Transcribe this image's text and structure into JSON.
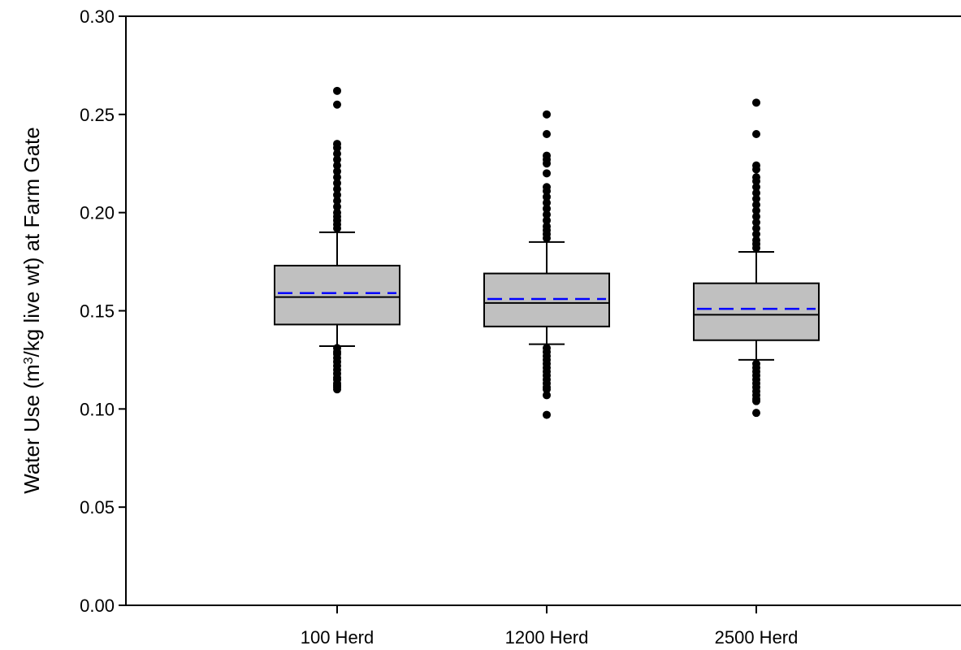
{
  "chart_data": {
    "type": "box",
    "ylabel": {
      "prefix": "Water Use (m",
      "superscript": "3",
      "suffix": "/kg live wt) at Farm Gate"
    },
    "xlabel": "",
    "ylim": [
      0,
      0.3
    ],
    "yticks": [
      "0.00",
      "0.05",
      "0.10",
      "0.15",
      "0.20",
      "0.25",
      "0.30"
    ],
    "grid": false,
    "colors": {
      "box_fill": "#c0c0c0",
      "mean_line": "#0000ff",
      "outline": "#000000"
    },
    "categories": [
      "100 Herd",
      "1200 Herd",
      "2500 Herd"
    ],
    "boxes": [
      {
        "category": "100 Herd",
        "whisker_low": 0.132,
        "q1": 0.143,
        "median": 0.157,
        "mean": 0.159,
        "q3": 0.173,
        "whisker_high": 0.19,
        "outliers_low": [
          0.131,
          0.129,
          0.128,
          0.126,
          0.124,
          0.122,
          0.12,
          0.118,
          0.116,
          0.115,
          0.113,
          0.112,
          0.111,
          0.11
        ],
        "outliers_high": [
          0.192,
          0.194,
          0.196,
          0.198,
          0.2,
          0.203,
          0.206,
          0.209,
          0.212,
          0.215,
          0.218,
          0.221,
          0.224,
          0.227,
          0.23,
          0.233,
          0.235,
          0.255,
          0.262
        ]
      },
      {
        "category": "1200 Herd",
        "whisker_low": 0.133,
        "q1": 0.142,
        "median": 0.154,
        "mean": 0.156,
        "q3": 0.169,
        "whisker_high": 0.185,
        "outliers_low": [
          0.131,
          0.129,
          0.127,
          0.125,
          0.123,
          0.121,
          0.119,
          0.117,
          0.115,
          0.113,
          0.111,
          0.11,
          0.107,
          0.097
        ],
        "outliers_high": [
          0.187,
          0.189,
          0.191,
          0.193,
          0.196,
          0.199,
          0.202,
          0.205,
          0.208,
          0.211,
          0.213,
          0.22,
          0.225,
          0.227,
          0.229,
          0.24,
          0.25
        ]
      },
      {
        "category": "2500 Herd",
        "whisker_low": 0.125,
        "q1": 0.135,
        "median": 0.148,
        "mean": 0.151,
        "q3": 0.164,
        "whisker_high": 0.18,
        "outliers_low": [
          0.123,
          0.121,
          0.119,
          0.117,
          0.115,
          0.113,
          0.111,
          0.109,
          0.107,
          0.105,
          0.104,
          0.098
        ],
        "outliers_high": [
          0.182,
          0.184,
          0.186,
          0.189,
          0.192,
          0.195,
          0.198,
          0.201,
          0.204,
          0.207,
          0.21,
          0.213,
          0.216,
          0.218,
          0.222,
          0.224,
          0.24,
          0.256
        ]
      }
    ]
  }
}
